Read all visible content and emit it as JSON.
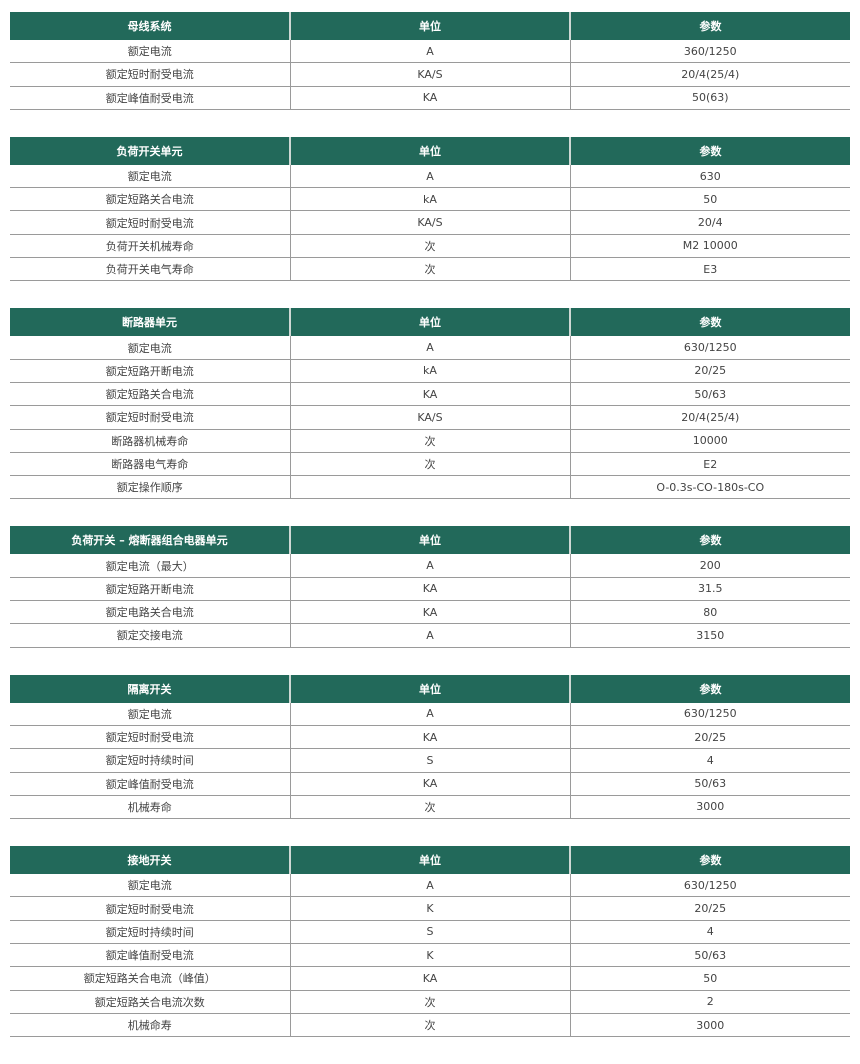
{
  "colors": {
    "header_bg": "#22695a",
    "header_text": "#ffffff",
    "border": "#9a9a9a"
  },
  "tables": [
    {
      "title": "母线系统",
      "unit": "单位",
      "param": "参数",
      "rows": [
        [
          "额定电流",
          "A",
          "360/1250"
        ],
        [
          "额定短时耐受电流",
          "KA/S",
          "20/4(25/4)"
        ],
        [
          "额定峰值耐受电流",
          "KA",
          "50(63)"
        ]
      ]
    },
    {
      "title": "负荷开关单元",
      "unit": "单位",
      "param": "参数",
      "rows": [
        [
          "额定电流",
          "A",
          "630"
        ],
        [
          "额定短路关合电流",
          "kA",
          "50"
        ],
        [
          "额定短时耐受电流",
          "KA/S",
          "20/4"
        ],
        [
          "负荷开关机械寿命",
          "次",
          "M2 10000"
        ],
        [
          "负荷开关电气寿命",
          "次",
          "E3"
        ]
      ]
    },
    {
      "title": "断路器单元",
      "unit": "单位",
      "param": "参数",
      "rows": [
        [
          "额定电流",
          "A",
          "630/1250"
        ],
        [
          "额定短路开断电流",
          "kA",
          "20/25"
        ],
        [
          "额定短路关合电流",
          "KA",
          "50/63"
        ],
        [
          "额定短时耐受电流",
          "KA/S",
          "20/4(25/4)"
        ],
        [
          "断路器机械寿命",
          "次",
          "10000"
        ],
        [
          "断路器电气寿命",
          "次",
          "E2"
        ],
        [
          "额定操作顺序",
          "",
          "O-0.3s-CO-180s-CO"
        ]
      ]
    },
    {
      "title": "负荷开关 – 熔断器组合电器单元",
      "unit": "单位",
      "param": "参数",
      "rows": [
        [
          "额定电流（最大）",
          "A",
          "200"
        ],
        [
          "额定短路开断电流",
          "KA",
          "31.5"
        ],
        [
          "额定电路关合电流",
          "KA",
          "80"
        ],
        [
          "额定交接电流",
          "A",
          "3150"
        ]
      ]
    },
    {
      "title": "隔离开关",
      "unit": "单位",
      "param": "参数",
      "rows": [
        [
          "额定电流",
          "A",
          "630/1250"
        ],
        [
          "额定短时耐受电流",
          "KA",
          "20/25"
        ],
        [
          "额定短时持续时间",
          "S",
          "4"
        ],
        [
          "额定峰值耐受电流",
          "KA",
          "50/63"
        ],
        [
          "机械寿命",
          "次",
          "3000"
        ]
      ]
    },
    {
      "title": "接地开关",
      "unit": "单位",
      "param": "参数",
      "rows": [
        [
          "额定电流",
          "A",
          "630/1250"
        ],
        [
          "额定短时耐受电流",
          "K",
          "20/25"
        ],
        [
          "额定短时持续时间",
          "S",
          "4"
        ],
        [
          "额定峰值耐受电流",
          "K",
          "50/63"
        ],
        [
          "额定短路关合电流（峰值）",
          "KA",
          "50"
        ],
        [
          "额定短路关合电流次数",
          "次",
          "2"
        ],
        [
          "机械命寿",
          "次",
          "3000"
        ]
      ]
    }
  ]
}
